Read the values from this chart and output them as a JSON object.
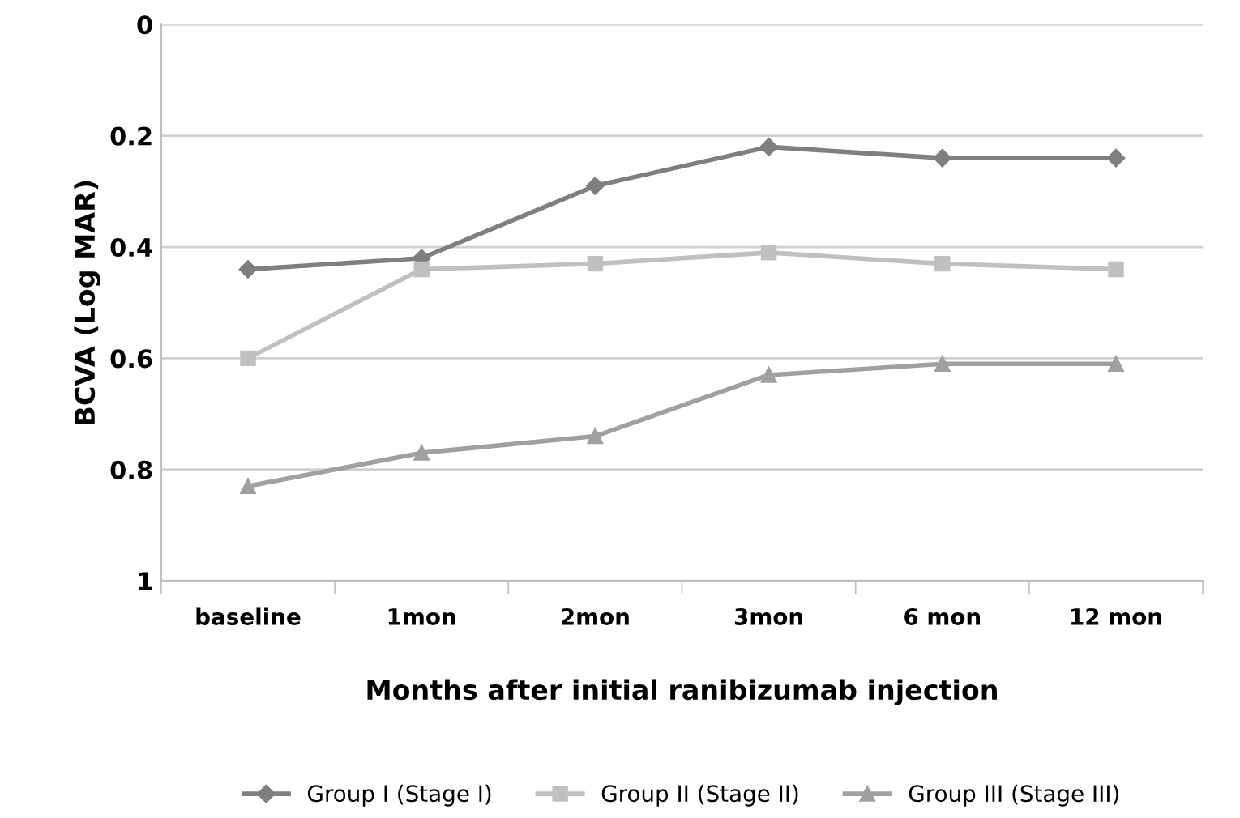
{
  "chart_data": {
    "type": "line",
    "ylabel": "BCVA (Log MAR)",
    "xlabel": "Months after initial ranibizumab injection",
    "categories": [
      "baseline",
      "1mon",
      "2mon",
      "3mon",
      "6 mon",
      "12 mon"
    ],
    "series": [
      {
        "name": "Group I (Stage I)",
        "color": "#7f7f7f",
        "marker": "diamond",
        "values": [
          0.44,
          0.42,
          0.29,
          0.22,
          0.24,
          0.24
        ]
      },
      {
        "name": "Group II (Stage II)",
        "color": "#c0c0c0",
        "marker": "square",
        "values": [
          0.6,
          0.44,
          0.43,
          0.41,
          0.43,
          0.44
        ]
      },
      {
        "name": "Group III (Stage III)",
        "color": "#a0a0a0",
        "marker": "triangle",
        "values": [
          0.83,
          0.77,
          0.74,
          0.63,
          0.61,
          0.61
        ]
      }
    ],
    "ylim": [
      1,
      0
    ],
    "yticks": [
      0,
      0.2,
      0.4,
      0.6,
      0.8,
      1
    ],
    "grid": "y",
    "legend": "bottom",
    "line_style": "solid"
  }
}
